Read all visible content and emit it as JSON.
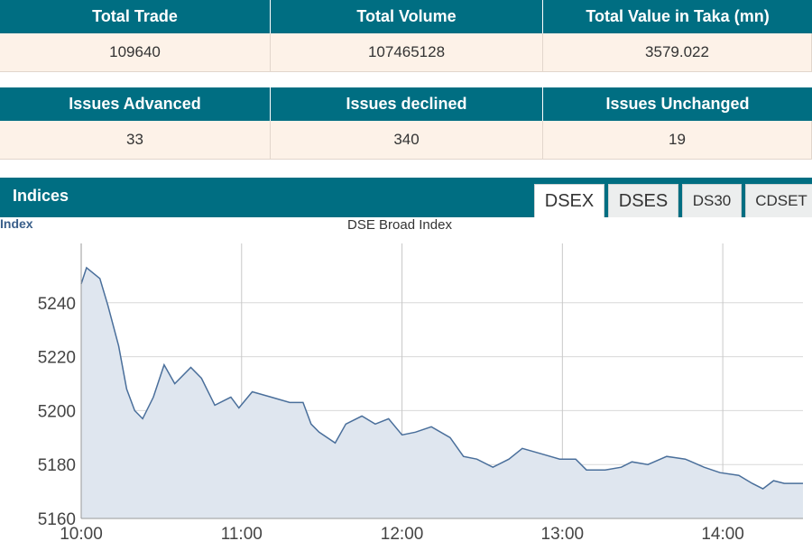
{
  "stats": {
    "headers": [
      "Total Trade",
      "Total Volume",
      "Total Value in Taka (mn)"
    ],
    "values": [
      "109640",
      "107465128",
      "3579.022"
    ]
  },
  "issues": {
    "headers": [
      "Issues Advanced",
      "Issues declined",
      "Issues Unchanged"
    ],
    "values": [
      "33",
      "340",
      "19"
    ]
  },
  "indices": {
    "title": "Indices",
    "tabs": [
      "DSEX",
      "DSES",
      "DS30",
      "CDSET"
    ]
  },
  "chart_data": {
    "type": "line",
    "title": "DSE Broad Index",
    "y_label": "Index",
    "x": [
      600,
      602,
      607,
      610,
      614,
      617,
      620,
      623,
      627,
      631,
      635,
      641,
      645,
      650,
      656,
      659,
      664,
      671,
      678,
      683,
      686,
      689,
      695,
      699,
      705,
      710,
      715,
      720,
      725,
      731,
      738,
      743,
      748,
      754,
      760,
      765,
      772,
      779,
      785,
      789,
      796,
      802,
      806,
      812,
      819,
      826,
      833,
      839,
      846,
      851,
      855,
      859,
      863,
      870
    ],
    "values": [
      5247,
      5253,
      5249,
      5239,
      5224,
      5208,
      5200,
      5197,
      5205,
      5217,
      5210,
      5216,
      5212,
      5202,
      5205,
      5201,
      5207,
      5205,
      5203,
      5203,
      5195,
      5192,
      5188,
      5195,
      5198,
      5195,
      5197,
      5191,
      5192,
      5194,
      5190,
      5183,
      5182,
      5179,
      5182,
      5186,
      5184,
      5182,
      5182,
      5178,
      5178,
      5179,
      5181,
      5180,
      5183,
      5182,
      5179,
      5177,
      5176,
      5173,
      5171,
      5174,
      5173,
      5173
    ],
    "color": "#4a6f9b",
    "fill": "#dfe6ef",
    "xlim": [
      600,
      870
    ],
    "xticks": [
      {
        "value": 600,
        "label": "10:00"
      },
      {
        "value": 660,
        "label": "11:00"
      },
      {
        "value": 720,
        "label": "12:00"
      },
      {
        "value": 780,
        "label": "13:00"
      },
      {
        "value": 840,
        "label": "14:00"
      }
    ],
    "ylim": [
      5160,
      5262
    ],
    "yticks": [
      5160,
      5180,
      5200,
      5220,
      5240
    ],
    "grid": true
  }
}
